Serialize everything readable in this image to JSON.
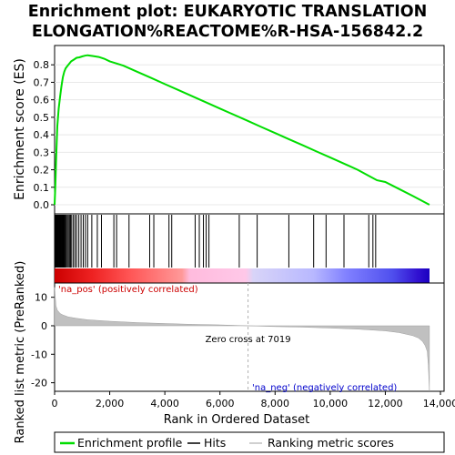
{
  "chart_data": {
    "type": "line",
    "title_lines": [
      "Enrichment plot: EUKARYOTIC TRANSLATION",
      "ELONGATION%REACTOME%R-HSA-156842.2"
    ],
    "xlabel": "Rank in Ordered Dataset",
    "ylabel_top": "Enrichment score (ES)",
    "ylabel_bottom": "Ranked list metric (PreRanked)",
    "xlim": [
      0,
      14000
    ],
    "x_ticks": [
      0,
      2000,
      4000,
      6000,
      8000,
      10000,
      12000,
      14000
    ],
    "x_tick_labels": [
      "0",
      "2,000",
      "4,000",
      "6,000",
      "8,000",
      "10,000",
      "12,000",
      "14,000"
    ],
    "es_ylim": [
      0,
      0.9
    ],
    "es_ticks": [
      0.0,
      0.1,
      0.2,
      0.3,
      0.4,
      0.5,
      0.6,
      0.7,
      0.8
    ],
    "es_tick_labels": [
      "0.0",
      "0.1",
      "0.2",
      "0.3",
      "0.4",
      "0.5",
      "0.6",
      "0.7",
      "0.8"
    ],
    "metric_ylim": [
      -23,
      15
    ],
    "metric_ticks": [
      10,
      0,
      -10,
      -20
    ],
    "metric_tick_labels": [
      "10",
      "0",
      "-10",
      "-20"
    ],
    "zero_cross_rank": 7019,
    "zero_cross_label": "Zero cross at 7019",
    "pos_label": "'na_pos' (positively correlated)",
    "neg_label": "'na_neg' (negatively correlated)",
    "es_curve": {
      "x": [
        0,
        30,
        60,
        100,
        150,
        200,
        250,
        300,
        350,
        400,
        450,
        500,
        600,
        700,
        800,
        900,
        1000,
        1100,
        1200,
        1400,
        1600,
        1800,
        2000,
        2200,
        2500,
        3000,
        3500,
        4000,
        4500,
        5000,
        5500,
        6000,
        6500,
        7000,
        7500,
        8000,
        8500,
        9000,
        9500,
        10000,
        10500,
        11000,
        11400,
        11700,
        12000,
        12500,
        13000,
        13600
      ],
      "y": [
        0.0,
        0.12,
        0.28,
        0.45,
        0.55,
        0.62,
        0.68,
        0.73,
        0.76,
        0.78,
        0.79,
        0.8,
        0.82,
        0.83,
        0.84,
        0.843,
        0.848,
        0.852,
        0.855,
        0.85,
        0.845,
        0.835,
        0.82,
        0.81,
        0.795,
        0.76,
        0.725,
        0.69,
        0.655,
        0.62,
        0.585,
        0.55,
        0.515,
        0.48,
        0.445,
        0.41,
        0.375,
        0.34,
        0.305,
        0.27,
        0.235,
        0.2,
        0.165,
        0.14,
        0.13,
        0.09,
        0.05,
        0.0
      ]
    },
    "hits": [
      20,
      35,
      50,
      70,
      90,
      110,
      130,
      150,
      170,
      190,
      210,
      230,
      250,
      270,
      290,
      310,
      330,
      360,
      390,
      420,
      460,
      500,
      540,
      580,
      620,
      680,
      740,
      800,
      880,
      960,
      1040,
      1120,
      1200,
      1350,
      1550,
      1700,
      2150,
      2250,
      2700,
      3450,
      3600,
      4150,
      4250,
      5100,
      5250,
      5400,
      5500,
      5600,
      6700,
      7350,
      8500,
      9400,
      9850,
      10500,
      11400,
      11550,
      11650
    ],
    "metric_curve": {
      "x": [
        0,
        50,
        100,
        200,
        300,
        500,
        800,
        1200,
        2000,
        3000,
        4000,
        5000,
        6000,
        7019,
        8000,
        9000,
        10000,
        11000,
        12000,
        12500,
        13000,
        13200,
        13350,
        13450,
        13520,
        13560,
        13600
      ],
      "y": [
        13.5,
        7,
        5.5,
        4.3,
        3.8,
        3.1,
        2.6,
        2.1,
        1.6,
        1.1,
        0.8,
        0.5,
        0.3,
        0.0,
        -0.3,
        -0.5,
        -0.8,
        -1.2,
        -1.8,
        -2.4,
        -3.5,
        -4.3,
        -5.5,
        -7,
        -9,
        -14,
        -23
      ]
    },
    "colors": {
      "es_line": "#00dd00",
      "hit_line": "#000000",
      "metric_fill": "#c0c0c0",
      "zero_line": "#b0b0b0",
      "pos_text": "#cc0000",
      "neg_text": "#0000cc",
      "band_gradient": [
        "#cc0000",
        "#ee2222",
        "#ff6666",
        "#ff9999",
        "#ffbbdd",
        "#e0d0f0",
        "#b0b0ff",
        "#7070ff",
        "#3333dd",
        "#1a00c0"
      ]
    },
    "legend": {
      "items": [
        {
          "label": "Enrichment profile",
          "swatch": "green-line"
        },
        {
          "label": "Hits",
          "swatch": "black-line"
        },
        {
          "label": "Ranking metric scores",
          "swatch": "gray-line"
        }
      ]
    }
  }
}
